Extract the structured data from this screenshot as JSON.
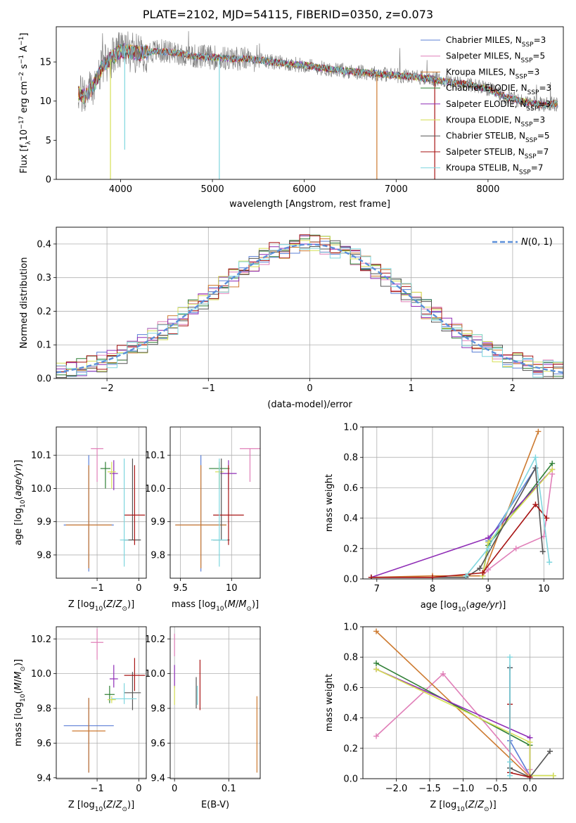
{
  "title": "PLATE=2102, MJD=54115, FIBERID=0350, z=0.073",
  "colors": [
    "#5b7fd6",
    "#e07fb8",
    "#cd7a30",
    "#2f7f35",
    "#8f2db6",
    "#d6df55",
    "#555555",
    "#a81515",
    "#7fd6de"
  ],
  "legend": [
    {
      "name": "Chabrier MILES",
      "nssp": "3"
    },
    {
      "name": "Salpeter MILES",
      "nssp": "5"
    },
    {
      "name": "Kroupa MILES",
      "nssp": "3"
    },
    {
      "name": "Chabrier ELODIE",
      "nssp": "3"
    },
    {
      "name": "Salpeter ELODIE",
      "nssp": "3"
    },
    {
      "name": "Kroupa ELODIE",
      "nssp": "3"
    },
    {
      "name": "Chabrier STELIB",
      "nssp": "5"
    },
    {
      "name": "Salpeter STELIB",
      "nssp": "7"
    },
    {
      "name": "Kroupa STELIB",
      "nssp": "7"
    }
  ],
  "chart_data": [
    {
      "id": "spectrum",
      "type": "line",
      "xlabel": "wavelength [Angstrom, rest frame]",
      "ylabel": "Flux [f_λ 10^-17 erg cm^-2 s^-1 A^-1]",
      "xlim": [
        3300,
        8820
      ],
      "ylim": [
        0,
        19.5
      ],
      "xticks": [
        4000,
        5000,
        6000,
        7000,
        8000
      ],
      "yticks": [
        0,
        5,
        10,
        15
      ],
      "continuum": {
        "x": [
          3540,
          3600,
          3700,
          3800,
          3900,
          4000,
          4100,
          4200,
          4400,
          4600,
          4800,
          5000,
          5200,
          5400,
          5600,
          5800,
          6000,
          6200,
          6400,
          6600,
          6800,
          7000,
          7200,
          7400,
          7600,
          7800,
          8000,
          8200,
          8400,
          8600,
          8760
        ],
        "y": [
          11.0,
          10.6,
          11.8,
          14.3,
          15.5,
          16.4,
          16.3,
          16.1,
          16.4,
          16.2,
          15.7,
          15.6,
          15.4,
          15.4,
          15.1,
          14.8,
          14.6,
          14.2,
          13.9,
          13.7,
          13.5,
          13.3,
          13.1,
          12.8,
          12.4,
          12.1,
          11.5,
          10.5,
          9.9,
          9.5,
          9.7
        ]
      },
      "absorption_spikes": [
        {
          "x": 3890,
          "y": 0,
          "series": 5
        },
        {
          "x": 4045,
          "y": 3.8,
          "series": 8
        },
        {
          "x": 5075,
          "y": 0,
          "series": 8
        },
        {
          "x": 6790,
          "y": 0,
          "series": 2
        },
        {
          "x": 7420,
          "y": 0,
          "series": 7
        }
      ]
    },
    {
      "id": "residuals",
      "type": "histogram",
      "xlabel": "(data-model)/error",
      "ylabel": "Normed distribution",
      "xlim": [
        -2.5,
        2.5
      ],
      "ylim": [
        0,
        0.45
      ],
      "xticks": [
        -2,
        -1,
        0,
        1,
        2
      ],
      "yticks": [
        0.0,
        0.1,
        0.2,
        0.3,
        0.4
      ],
      "bin_width": 0.1,
      "reference_label": "N(0,1)"
    },
    {
      "id": "age_vs_Z",
      "type": "errorbar",
      "xlabel": "Z [log10(Z/Z⊙)]",
      "ylabel": "age [log10(age/yr)]",
      "xlim": [
        -1.98,
        0.18
      ],
      "ylim": [
        9.73,
        10.185
      ],
      "xticks": [
        -1,
        0
      ],
      "yticks": [
        9.8,
        9.9,
        10.0,
        10.1
      ],
      "points": [
        {
          "x": -1.2,
          "xerr": [
            0.6,
            0.6
          ],
          "y": 9.89,
          "yerr": [
            0.14,
            0.21
          ],
          "series": 0
        },
        {
          "x": -1.0,
          "xerr": [
            0.15,
            0.15
          ],
          "y": 10.12,
          "yerr": [
            0.1,
            0.0
          ],
          "series": 1
        },
        {
          "x": -1.2,
          "xerr": [
            0.55,
            0.55
          ],
          "y": 9.89,
          "yerr": [
            0.13,
            0.18
          ],
          "series": 2
        },
        {
          "x": -0.8,
          "xerr": [
            0.12,
            0.12
          ],
          "y": 10.06,
          "yerr": [
            0.06,
            0.02
          ],
          "series": 3
        },
        {
          "x": -0.6,
          "xerr": [
            0.1,
            0.1
          ],
          "y": 10.045,
          "yerr": [
            0.05,
            0.04
          ],
          "series": 4
        },
        {
          "x": -0.65,
          "xerr": [
            0.1,
            0.1
          ],
          "y": 10.05,
          "yerr": [
            0.05,
            0.03
          ],
          "series": 5
        },
        {
          "x": -0.15,
          "xerr": [
            0.2,
            0.2
          ],
          "y": 9.845,
          "yerr": [
            0.0,
            0.245
          ],
          "series": 6
        },
        {
          "x": -0.1,
          "xerr": [
            0.25,
            0.25
          ],
          "y": 9.92,
          "yerr": [
            0.09,
            0.15
          ],
          "series": 7
        },
        {
          "x": -0.35,
          "xerr": [
            0.1,
            0.1
          ],
          "y": 9.845,
          "yerr": [
            0.08,
            0.245
          ],
          "series": 8
        }
      ]
    },
    {
      "id": "age_vs_mass",
      "type": "errorbar",
      "xlabel": "mass [log10(M/M⊙)]",
      "ylabel": "",
      "xlim": [
        9.4,
        10.28
      ],
      "ylim": [
        9.73,
        10.185
      ],
      "xticks": [
        9.5,
        10.0
      ],
      "yticks": [
        9.8,
        9.9,
        10.0,
        10.1
      ],
      "points": [
        {
          "x": 9.7,
          "xerr": [
            0.25,
            0.25
          ],
          "y": 9.89,
          "yerr": [
            0.14,
            0.21
          ],
          "series": 0
        },
        {
          "x": 10.18,
          "xerr": [
            0.1,
            0.1
          ],
          "y": 10.12,
          "yerr": [
            0.1,
            0.0
          ],
          "series": 1
        },
        {
          "x": 9.7,
          "xerr": [
            0.25,
            0.25
          ],
          "y": 9.89,
          "yerr": [
            0.13,
            0.18
          ],
          "series": 2
        },
        {
          "x": 9.88,
          "xerr": [
            0.1,
            0.1
          ],
          "y": 10.06,
          "yerr": [
            0.06,
            0.02
          ],
          "series": 3
        },
        {
          "x": 9.97,
          "xerr": [
            0.08,
            0.08
          ],
          "y": 10.045,
          "yerr": [
            0.05,
            0.04
          ],
          "series": 4
        },
        {
          "x": 9.88,
          "xerr": [
            0.04,
            0.04
          ],
          "y": 10.05,
          "yerr": [
            0.05,
            0.03
          ],
          "series": 5
        },
        {
          "x": 9.9,
          "xerr": [
            0.08,
            0.08
          ],
          "y": 9.845,
          "yerr": [
            0.0,
            0.245
          ],
          "series": 6
        },
        {
          "x": 9.97,
          "xerr": [
            0.15,
            0.15
          ],
          "y": 9.92,
          "yerr": [
            0.09,
            0.15
          ],
          "series": 7
        },
        {
          "x": 9.88,
          "xerr": [
            0.08,
            0.08
          ],
          "y": 9.845,
          "yerr": [
            0.08,
            0.245
          ],
          "series": 8
        }
      ]
    },
    {
      "id": "weight_vs_age",
      "type": "line",
      "xlabel": "age [log10(age/yr)]",
      "ylabel": "mass weight",
      "xlim": [
        6.75,
        10.35
      ],
      "ylim": [
        0,
        1.0
      ],
      "xticks": [
        7,
        8,
        9,
        10
      ],
      "yticks": [
        0.0,
        0.2,
        0.4,
        0.6,
        0.8,
        1.0
      ],
      "series": [
        {
          "x": [
            8.9,
            9.0,
            9.85
          ],
          "y": [
            0.02,
            0.25,
            0.73
          ],
          "series": 0
        },
        {
          "x": [
            8.9,
            9.0,
            9.5,
            10.0,
            10.15
          ],
          "y": [
            0.02,
            0.06,
            0.2,
            0.28,
            0.69
          ],
          "series": 1
        },
        {
          "x": [
            6.9,
            8.0,
            8.9,
            9.9
          ],
          "y": [
            0.01,
            0.02,
            0.02,
            0.97
          ],
          "series": 2
        },
        {
          "x": [
            8.9,
            9.0,
            10.15
          ],
          "y": [
            0.02,
            0.22,
            0.76
          ],
          "series": 3
        },
        {
          "x": [
            6.9,
            9.0,
            10.15
          ],
          "y": [
            0.01,
            0.27,
            0.72
          ],
          "series": 4
        },
        {
          "x": [
            8.9,
            9.0,
            10.15
          ],
          "y": [
            0.02,
            0.24,
            0.72
          ],
          "series": 5
        },
        {
          "x": [
            6.9,
            8.6,
            8.85,
            9.85,
            9.98
          ],
          "y": [
            0.01,
            0.01,
            0.07,
            0.73,
            0.18
          ],
          "series": 6
        },
        {
          "x": [
            6.9,
            8.0,
            8.9,
            9.85,
            10.05
          ],
          "y": [
            0.01,
            0.01,
            0.04,
            0.49,
            0.4
          ],
          "series": 7
        },
        {
          "x": [
            8.6,
            9.0,
            9.85,
            10.1
          ],
          "y": [
            0.02,
            0.2,
            0.8,
            0.11
          ],
          "series": 8
        }
      ]
    },
    {
      "id": "mass_vs_Z",
      "type": "errorbar",
      "xlabel": "Z [log10(Z/Z⊙)]",
      "ylabel": "mass [log10(M/M⊙)]",
      "xlim": [
        -1.98,
        0.18
      ],
      "ylim": [
        9.395,
        10.27
      ],
      "xticks": [
        -1,
        0
      ],
      "yticks": [
        9.4,
        9.6,
        9.8,
        10.0,
        10.2
      ],
      "points": [
        {
          "x": -1.2,
          "xerr": [
            0.6,
            0.6
          ],
          "y": 9.7,
          "yerr": [
            0.27,
            0.16
          ],
          "series": 0
        },
        {
          "x": -1.0,
          "xerr": [
            0.15,
            0.15
          ],
          "y": 10.18,
          "yerr": [
            0.1,
            0.08
          ],
          "series": 1
        },
        {
          "x": -1.2,
          "xerr": [
            0.4,
            0.4
          ],
          "y": 9.67,
          "yerr": [
            0.24,
            0.19
          ],
          "series": 2
        },
        {
          "x": -0.7,
          "xerr": [
            0.12,
            0.12
          ],
          "y": 9.88,
          "yerr": [
            0.05,
            0.05
          ],
          "series": 3
        },
        {
          "x": -0.6,
          "xerr": [
            0.1,
            0.1
          ],
          "y": 9.97,
          "yerr": [
            0.05,
            0.08
          ],
          "series": 4
        },
        {
          "x": -0.65,
          "xerr": [
            0.1,
            0.1
          ],
          "y": 9.85,
          "yerr": [
            0.02,
            0.02
          ],
          "series": 5
        },
        {
          "x": -0.15,
          "xerr": [
            0.2,
            0.2
          ],
          "y": 9.89,
          "yerr": [
            0.1,
            0.12
          ],
          "series": 6
        },
        {
          "x": -0.1,
          "xerr": [
            0.25,
            0.25
          ],
          "y": 9.99,
          "yerr": [
            0.09,
            0.1
          ],
          "series": 7
        },
        {
          "x": -0.35,
          "xerr": [
            0.3,
            0.3
          ],
          "y": 9.855,
          "yerr": [
            0.03,
            0.09
          ],
          "series": 8
        }
      ]
    },
    {
      "id": "mass_vs_ebv",
      "type": "errorbar",
      "xlabel": "E(B-V)",
      "ylabel": "",
      "xlim": [
        -0.008,
        0.158
      ],
      "ylim": [
        9.395,
        10.27
      ],
      "xticks": [
        0.0,
        0.1
      ],
      "yticks": [
        9.4,
        9.6,
        9.8,
        10.0,
        10.2
      ],
      "points": [
        {
          "x": 0.0,
          "y": 10.15,
          "yerr": [
            0.05,
            0.08
          ],
          "series": 1
        },
        {
          "x": 0.0,
          "y": 9.97,
          "yerr": [
            0.05,
            0.08
          ],
          "series": 4
        },
        {
          "x": 0.0,
          "y": 9.85,
          "yerr": [
            0.03,
            0.08
          ],
          "series": 5
        },
        {
          "x": 0.04,
          "y": 9.9,
          "yerr": [
            0.1,
            0.08
          ],
          "series": 6
        },
        {
          "x": 0.042,
          "y": 9.87,
          "yerr": [
            0.05,
            0.06
          ],
          "series": 8
        },
        {
          "x": 0.047,
          "y": 9.95,
          "yerr": [
            0.16,
            0.13
          ],
          "series": 7
        },
        {
          "x": 0.152,
          "y": 9.66,
          "yerr": [
            0.23,
            0.21
          ],
          "series": 2
        }
      ]
    },
    {
      "id": "weight_vs_Z",
      "type": "line",
      "xlabel": "Z [log10(Z/Z⊙)]",
      "ylabel": "mass weight",
      "xlim": [
        -2.5,
        0.5
      ],
      "ylim": [
        0,
        1.0
      ],
      "xticks": [
        -2.0,
        -1.5,
        -1.0,
        -0.5,
        0.0
      ],
      "yticks": [
        0.0,
        0.2,
        0.4,
        0.6,
        0.8,
        1.0
      ],
      "series": [
        {
          "x": [
            -0.3,
            -0.3,
            0.0
          ],
          "y": [
            0.73,
            0.25,
            0.02
          ],
          "series": 0
        },
        {
          "x": [
            -2.3,
            -1.3,
            0.0,
            0.0
          ],
          "y": [
            0.28,
            0.69,
            0.02,
            0.06
          ],
          "series": 1
        },
        {
          "x": [
            -2.3,
            0.0
          ],
          "y": [
            0.97,
            0.01
          ],
          "series": 2
        },
        {
          "x": [
            -2.3,
            0.0,
            0.0,
            0.35
          ],
          "y": [
            0.76,
            0.22,
            0.02,
            0.02
          ],
          "series": 3
        },
        {
          "x": [
            -2.3,
            0.0,
            0.0
          ],
          "y": [
            0.72,
            0.27,
            0.01
          ],
          "series": 4
        },
        {
          "x": [
            -2.3,
            0.0,
            0.0,
            0.35
          ],
          "y": [
            0.72,
            0.24,
            0.02,
            0.02
          ],
          "series": 5
        },
        {
          "x": [
            -0.3,
            -0.3,
            0.0,
            0.3
          ],
          "y": [
            0.73,
            0.07,
            0.01,
            0.18
          ],
          "series": 6
        },
        {
          "x": [
            -0.3,
            -0.3,
            0.0
          ],
          "y": [
            0.49,
            0.04,
            0.01
          ],
          "series": 7
        },
        {
          "x": [
            -0.3,
            -0.3,
            -0.3
          ],
          "y": [
            0.8,
            0.11,
            0.02
          ],
          "series": 8
        }
      ]
    }
  ]
}
